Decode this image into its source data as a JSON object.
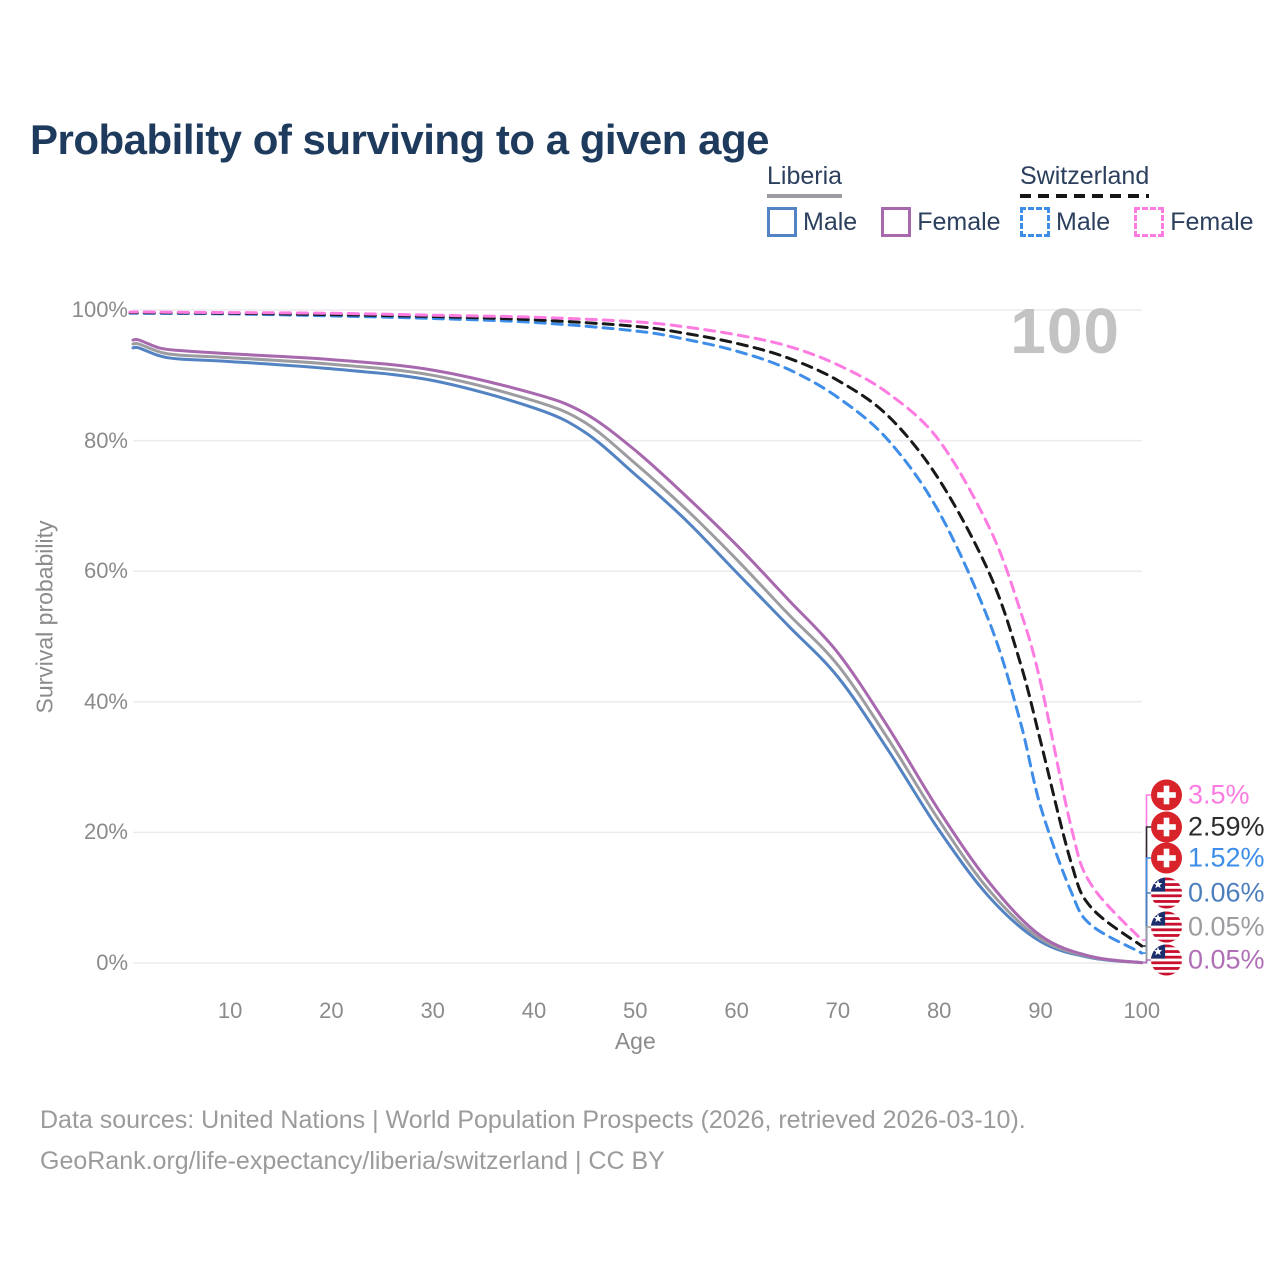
{
  "title": "Probability of surviving to a given age",
  "indicator": {
    "value": "100"
  },
  "legend": {
    "liberia": {
      "label": "Liberia",
      "male": "Male",
      "female": "Female",
      "accent": "#9d9da1"
    },
    "switzerland": {
      "label": "Switzerland",
      "male": "Male",
      "female": "Female",
      "accent": "#161616"
    }
  },
  "axes": {
    "y_label": "Survival probability",
    "x_label": "Age",
    "y_ticks": [
      "100%",
      "80%",
      "60%",
      "40%",
      "20%",
      "0%"
    ],
    "x_ticks": [
      "10",
      "20",
      "30",
      "40",
      "50",
      "60",
      "70",
      "80",
      "90",
      "100"
    ]
  },
  "end_labels": [
    {
      "flag": "switzerland",
      "value": "3.5%",
      "color": "#fd7ce1"
    },
    {
      "flag": "switzerland",
      "value": "2.59%",
      "color": "#2d2d2d"
    },
    {
      "flag": "switzerland",
      "value": "1.52%",
      "color": "#3e8ee9"
    },
    {
      "flag": "liberia",
      "value": "0.06%",
      "color": "#4d7fbe"
    },
    {
      "flag": "liberia",
      "value": "0.05%",
      "color": "#9d9da1"
    },
    {
      "flag": "liberia",
      "value": "0.05%",
      "color": "#b06fb6"
    }
  ],
  "footer": {
    "line1": "Data sources: United Nations | World Population Prospects (2026, retrieved 2026-03-10).",
    "line2": "GeoRank.org/life-expectancy/liberia/switzerland | CC BY"
  },
  "chart_data": {
    "type": "line",
    "title": "Probability of surviving to a given age",
    "xlabel": "Age",
    "ylabel": "Survival probability",
    "xlim": [
      0,
      100
    ],
    "ylim": [
      0,
      100
    ],
    "y_unit": "%",
    "grid": "horizontal-only",
    "legend_position": "top-right",
    "hovered_age": 100,
    "series": [
      {
        "name": "Liberia — Male",
        "style": "solid",
        "color": "#5383c2",
        "end_value_pct": 0.06,
        "points": [
          [
            1,
            94.2
          ],
          [
            3,
            93.0
          ],
          [
            5,
            92.5
          ],
          [
            10,
            92.1
          ],
          [
            20,
            91.0
          ],
          [
            30,
            89.2
          ],
          [
            40,
            85.0
          ],
          [
            45,
            81.3
          ],
          [
            50,
            74.8
          ],
          [
            55,
            67.8
          ],
          [
            60,
            59.8
          ],
          [
            65,
            51.8
          ],
          [
            70,
            43.8
          ],
          [
            75,
            32.5
          ],
          [
            80,
            20.3
          ],
          [
            85,
            10.0
          ],
          [
            90,
            3.3
          ],
          [
            95,
            0.8
          ],
          [
            100,
            0.06
          ]
        ]
      },
      {
        "name": "Liberia — Both sexes",
        "style": "solid",
        "color": "#9d9da1",
        "end_value_pct": 0.05,
        "points": [
          [
            1,
            94.8
          ],
          [
            3,
            93.6
          ],
          [
            5,
            93.1
          ],
          [
            10,
            92.7
          ],
          [
            20,
            91.7
          ],
          [
            30,
            90.0
          ],
          [
            40,
            86.1
          ],
          [
            45,
            82.8
          ],
          [
            50,
            76.5
          ],
          [
            55,
            69.5
          ],
          [
            60,
            61.8
          ],
          [
            65,
            53.6
          ],
          [
            70,
            45.6
          ],
          [
            75,
            34.2
          ],
          [
            80,
            21.8
          ],
          [
            85,
            11.0
          ],
          [
            90,
            3.7
          ],
          [
            95,
            0.9
          ],
          [
            100,
            0.05
          ]
        ]
      },
      {
        "name": "Liberia — Female",
        "style": "solid",
        "color": "#a768ae",
        "end_value_pct": 0.05,
        "points": [
          [
            1,
            95.4
          ],
          [
            3,
            94.2
          ],
          [
            5,
            93.8
          ],
          [
            10,
            93.3
          ],
          [
            20,
            92.4
          ],
          [
            30,
            90.8
          ],
          [
            40,
            87.2
          ],
          [
            45,
            84.2
          ],
          [
            50,
            78.5
          ],
          [
            55,
            71.5
          ],
          [
            60,
            64.0
          ],
          [
            65,
            55.8
          ],
          [
            70,
            47.5
          ],
          [
            75,
            36.0
          ],
          [
            80,
            23.3
          ],
          [
            85,
            12.2
          ],
          [
            90,
            4.2
          ],
          [
            95,
            1.0
          ],
          [
            100,
            0.05
          ]
        ]
      },
      {
        "name": "Switzerland — Male",
        "style": "dashed",
        "color": "#3e8ee9",
        "end_value_pct": 1.52,
        "points": [
          [
            1,
            99.5
          ],
          [
            10,
            99.4
          ],
          [
            20,
            99.1
          ],
          [
            30,
            98.7
          ],
          [
            40,
            98.1
          ],
          [
            50,
            96.8
          ],
          [
            55,
            95.5
          ],
          [
            60,
            93.7
          ],
          [
            65,
            91.0
          ],
          [
            70,
            86.6
          ],
          [
            75,
            80.0
          ],
          [
            80,
            69.0
          ],
          [
            85,
            52.0
          ],
          [
            88,
            37.0
          ],
          [
            90,
            24.0
          ],
          [
            93,
            11.0
          ],
          [
            95,
            5.8
          ],
          [
            100,
            1.52
          ]
        ]
      },
      {
        "name": "Switzerland — Both sexes",
        "style": "dashed",
        "color": "#181818",
        "end_value_pct": 2.59,
        "points": [
          [
            1,
            99.6
          ],
          [
            10,
            99.5
          ],
          [
            20,
            99.3
          ],
          [
            30,
            99.0
          ],
          [
            40,
            98.5
          ],
          [
            50,
            97.5
          ],
          [
            55,
            96.4
          ],
          [
            60,
            94.9
          ],
          [
            65,
            92.7
          ],
          [
            70,
            89.2
          ],
          [
            75,
            83.7
          ],
          [
            80,
            74.0
          ],
          [
            85,
            59.5
          ],
          [
            88,
            46.0
          ],
          [
            90,
            34.0
          ],
          [
            93,
            15.5
          ],
          [
            95,
            8.5
          ],
          [
            100,
            2.59
          ]
        ]
      },
      {
        "name": "Switzerland — Female",
        "style": "dashed",
        "color": "#fd7ce1",
        "end_value_pct": 3.5,
        "points": [
          [
            1,
            99.7
          ],
          [
            10,
            99.6
          ],
          [
            20,
            99.5
          ],
          [
            30,
            99.2
          ],
          [
            40,
            98.9
          ],
          [
            50,
            98.2
          ],
          [
            55,
            97.4
          ],
          [
            60,
            96.2
          ],
          [
            65,
            94.5
          ],
          [
            70,
            91.6
          ],
          [
            75,
            87.2
          ],
          [
            80,
            80.0
          ],
          [
            85,
            66.5
          ],
          [
            88,
            54.0
          ],
          [
            90,
            43.0
          ],
          [
            93,
            21.0
          ],
          [
            95,
            12.0
          ],
          [
            100,
            3.5
          ]
        ]
      }
    ]
  }
}
